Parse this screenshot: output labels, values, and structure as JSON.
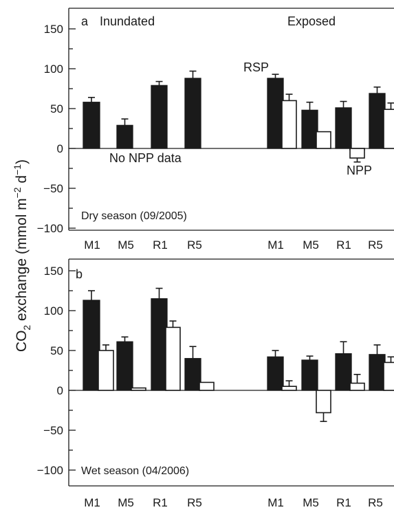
{
  "ylabel_main": "CO",
  "ylabel_sub": "2",
  "ylabel_rest": " exchange (mmol m",
  "ylabel_exp1": "−2",
  "ylabel_mid": " d",
  "ylabel_exp2": "−1",
  "ylabel_end": ")",
  "colors": {
    "rsp": "#1a1a1a",
    "npp": "#ffffff",
    "outline": "#1a1a1a"
  },
  "chart_data": [
    {
      "type": "bar",
      "panel": "a",
      "ylim": [
        -100,
        160
      ],
      "yticks": [
        -100,
        -50,
        0,
        50,
        100,
        150
      ],
      "ytick_labels": [
        "−100",
        "−50",
        "0",
        "50",
        "100",
        "150"
      ],
      "groups": [
        "Inundated",
        "Exposed"
      ],
      "categories": [
        "M1",
        "M5",
        "R1",
        "R5",
        "M1",
        "M5",
        "R1",
        "R5"
      ],
      "series": [
        {
          "name": "RSP",
          "values": [
            58,
            29,
            79,
            88,
            88,
            48,
            51,
            69
          ],
          "errors": [
            6,
            8,
            5,
            9,
            5,
            10,
            8,
            8
          ]
        },
        {
          "name": "NPP",
          "values": [
            null,
            null,
            null,
            null,
            60,
            21,
            0,
            49
          ],
          "errors": [
            null,
            null,
            null,
            null,
            8,
            null,
            null,
            8
          ]
        }
      ],
      "npp_neg_bar": {
        "index": 6,
        "value": -12,
        "error": 5
      },
      "annotations": [
        "No NPP data",
        "RSP",
        "NPP"
      ],
      "season_label": "Dry season (09/2005)"
    },
    {
      "type": "bar",
      "panel": "b",
      "ylim": [
        -100,
        160
      ],
      "yticks": [
        -100,
        -50,
        0,
        50,
        100,
        150
      ],
      "ytick_labels": [
        "−100",
        "−50",
        "0",
        "50",
        "100",
        "150"
      ],
      "groups": [],
      "categories": [
        "M1",
        "M5",
        "R1",
        "R5",
        "M1",
        "M5",
        "R1",
        "R5"
      ],
      "series": [
        {
          "name": "RSP",
          "values": [
            113,
            61,
            115,
            40,
            42,
            38,
            46,
            45
          ],
          "errors": [
            12,
            6,
            13,
            15,
            8,
            5,
            15,
            12
          ]
        },
        {
          "name": "NPP",
          "values": [
            50,
            3,
            79,
            10,
            5,
            -28,
            9,
            35
          ],
          "errors": [
            7,
            null,
            8,
            null,
            7,
            11,
            11,
            7
          ]
        }
      ],
      "annotations": [],
      "season_label": "Wet season (04/2006)"
    }
  ]
}
